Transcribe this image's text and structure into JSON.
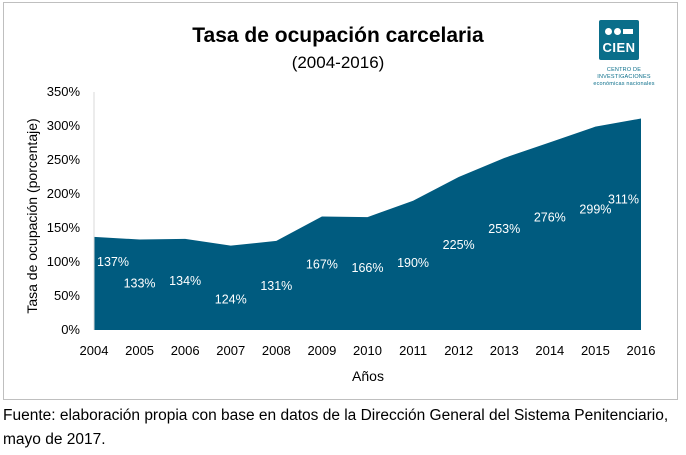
{
  "chart_data": {
    "type": "area",
    "title": "Tasa de ocupación carcelaria",
    "subtitle": "(2004-2016)",
    "xlabel": "Años",
    "ylabel": "Tasa de ocupación (porcentaje)",
    "categories": [
      "2004",
      "2005",
      "2006",
      "2007",
      "2008",
      "2009",
      "2010",
      "2011",
      "2012",
      "2013",
      "2014",
      "2015",
      "2016"
    ],
    "values": [
      137,
      133,
      134,
      124,
      131,
      167,
      166,
      190,
      225,
      253,
      276,
      299,
      311
    ],
    "data_labels": [
      "137%",
      "133%",
      "134%",
      "124%",
      "131%",
      "167%",
      "166%",
      "190%",
      "225%",
      "253%",
      "276%",
      "299%",
      "311%"
    ],
    "ylim": [
      0,
      350
    ],
    "yticks": [
      0,
      50,
      100,
      150,
      200,
      250,
      300,
      350
    ],
    "ytick_labels": [
      "0%",
      "50%",
      "100%",
      "150%",
      "200%",
      "250%",
      "300%",
      "350%"
    ],
    "grid": false,
    "fill_color": "#005b7f"
  },
  "logo": {
    "name": "CIEN",
    "caption_line1": "CENTRO DE INVESTIGACIONES",
    "caption_line2": "económicas nacionales",
    "color": "#0a6e8a"
  },
  "source_note": "Fuente: elaboración propia con base en datos de la Dirección General del Sistema Penitenciario, mayo de 2017."
}
